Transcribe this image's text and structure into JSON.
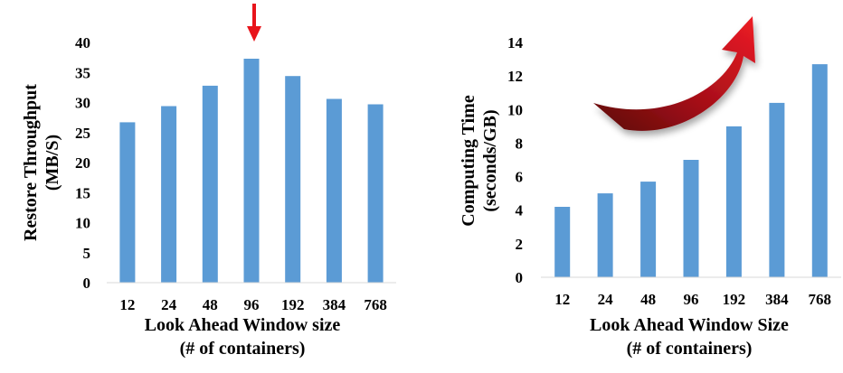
{
  "chart_data": [
    {
      "type": "bar",
      "categories": [
        "12",
        "24",
        "48",
        "96",
        "192",
        "384",
        "768"
      ],
      "values": [
        26.7,
        29.4,
        32.8,
        37.3,
        34.4,
        30.6,
        29.7
      ],
      "title": "",
      "xlabel": "Look Ahead Window size",
      "xlabel2": "(# of containers)",
      "ylabel": "Restore Throughput",
      "ylabel2": "(MB/S)",
      "ylim": [
        0,
        40
      ],
      "yticks": [
        0,
        5,
        10,
        15,
        20,
        25,
        30,
        35,
        40
      ],
      "grid": false,
      "bar_color": "#5b9bd5",
      "annotation": {
        "type": "red-down-arrow",
        "category": "96",
        "color": "#e8141b"
      }
    },
    {
      "type": "bar",
      "categories": [
        "12",
        "24",
        "48",
        "96",
        "192",
        "384",
        "768"
      ],
      "values": [
        4.2,
        5.0,
        5.7,
        7.0,
        9.0,
        10.4,
        12.7
      ],
      "title": "",
      "xlabel": "Look Ahead Window Size",
      "xlabel2": "(# of containers)",
      "ylabel": "Computing Time",
      "ylabel2": "(seconds/GB)",
      "ylim": [
        0,
        14
      ],
      "yticks": [
        0,
        2,
        4,
        6,
        8,
        10,
        12,
        14
      ],
      "grid": false,
      "bar_color": "#5b9bd5",
      "annotation": {
        "type": "red-curved-up-arrow",
        "color": "#b3121a"
      }
    }
  ]
}
